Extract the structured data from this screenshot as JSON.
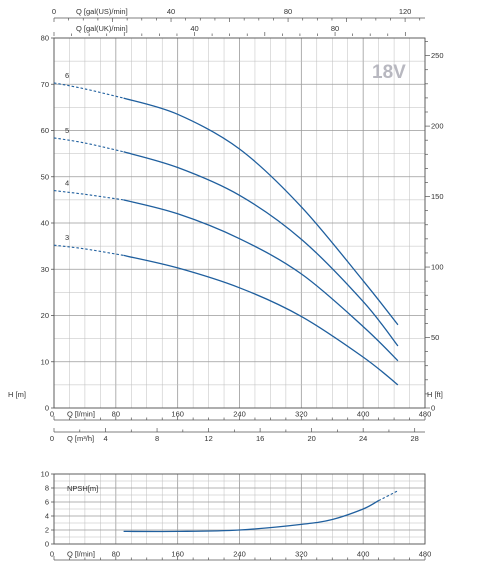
{
  "chart_data": [
    {
      "type": "line",
      "badge": "18V",
      "x_axis": {
        "label": "Q [l/min]",
        "min": 0,
        "max": 480,
        "ticks": [
          0,
          80,
          160,
          240,
          320,
          400,
          480
        ]
      },
      "x_axis_m3h": {
        "label": "Q [m³/h]",
        "min": 0,
        "max": 28.8,
        "ticks": [
          0,
          4,
          8,
          12,
          16,
          20,
          24,
          28
        ]
      },
      "x_axis_top_us": {
        "label": "Q [gal(US)/min]",
        "min": 0,
        "max": 126.8,
        "ticks": [
          0,
          40,
          80,
          120
        ]
      },
      "x_axis_top_uk": {
        "label": "Q [gal(UK)/min]",
        "min": 0,
        "max": 105.6,
        "ticks": [
          0,
          40,
          80
        ]
      },
      "y_axis_left": {
        "label": "H [m]",
        "min": 0,
        "max": 80,
        "ticks": [
          0,
          10,
          20,
          30,
          40,
          50,
          60,
          70,
          80
        ]
      },
      "y_axis_right": {
        "label": "H [ft]",
        "min": 0,
        "max": 262.5,
        "ticks": [
          0,
          50,
          100,
          150,
          200,
          250
        ]
      },
      "grid": true,
      "series": [
        {
          "name": "3",
          "dashed_until": 90,
          "x": [
            0,
            40,
            90,
            160,
            240,
            320,
            400,
            445
          ],
          "y": [
            35.2,
            34.4,
            33,
            30.3,
            26,
            19.8,
            11,
            5
          ]
        },
        {
          "name": "4",
          "dashed_until": 90,
          "x": [
            0,
            40,
            90,
            160,
            240,
            320,
            400,
            445
          ],
          "y": [
            47,
            46.2,
            45,
            42,
            36.6,
            29,
            17.6,
            10.2
          ]
        },
        {
          "name": "5",
          "dashed_until": 90,
          "x": [
            0,
            40,
            90,
            160,
            240,
            320,
            400,
            445
          ],
          "y": [
            58.4,
            57.3,
            55.4,
            52,
            46,
            36.5,
            23,
            13.4
          ]
        },
        {
          "name": "6",
          "dashed_until": 90,
          "x": [
            0,
            40,
            90,
            160,
            240,
            320,
            400,
            445
          ],
          "y": [
            70.3,
            69,
            67,
            63.5,
            56,
            43.5,
            27.5,
            18
          ]
        }
      ]
    },
    {
      "type": "line",
      "ylabel": "NPSH[m]",
      "x_axis": {
        "label": "Q [l/min]",
        "min": 0,
        "max": 480,
        "ticks": [
          0,
          80,
          160,
          240,
          320,
          400,
          480
        ]
      },
      "y_axis": {
        "min": 0,
        "max": 10,
        "ticks": [
          0,
          2,
          4,
          6,
          8,
          10
        ]
      },
      "grid": true,
      "series": [
        {
          "name": "NPSH",
          "dashed_from": 420,
          "x": [
            90,
            160,
            240,
            320,
            360,
            400,
            420,
            445
          ],
          "y": [
            1.8,
            1.8,
            2.0,
            2.8,
            3.5,
            5.0,
            6.2,
            7.6
          ]
        }
      ]
    }
  ]
}
